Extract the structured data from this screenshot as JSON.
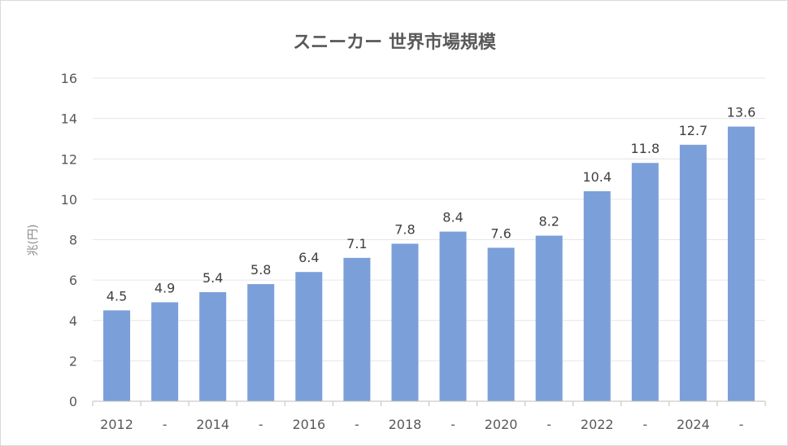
{
  "chart_data": {
    "type": "bar",
    "title": "スニーカー 世界市場規模",
    "xlabel": "",
    "ylabel": "兆(円)",
    "ylim": [
      0,
      16
    ],
    "yticks": [
      0,
      2,
      4,
      6,
      8,
      10,
      12,
      14,
      16
    ],
    "grid": true,
    "legend": "none",
    "categories": [
      "2012",
      "-",
      "2014",
      "-",
      "2016",
      "-",
      "2018",
      "-",
      "2020",
      "-",
      "2022",
      "-",
      "2024",
      "-"
    ],
    "values": [
      4.5,
      4.9,
      5.4,
      5.8,
      6.4,
      7.1,
      7.8,
      8.4,
      7.6,
      8.2,
      10.4,
      11.8,
      12.7,
      13.6
    ],
    "data_labels": [
      "4.5",
      "4.9",
      "5.4",
      "5.8",
      "6.4",
      "7.1",
      "7.8",
      "8.4",
      "7.6",
      "8.2",
      "10.4",
      "11.8",
      "12.7",
      "13.6"
    ],
    "colors": {
      "bar": "#7b9fd9",
      "grid": "#e6e6e6",
      "axis": "#bfbfbf",
      "text": "#595959",
      "title": "#595959"
    }
  }
}
